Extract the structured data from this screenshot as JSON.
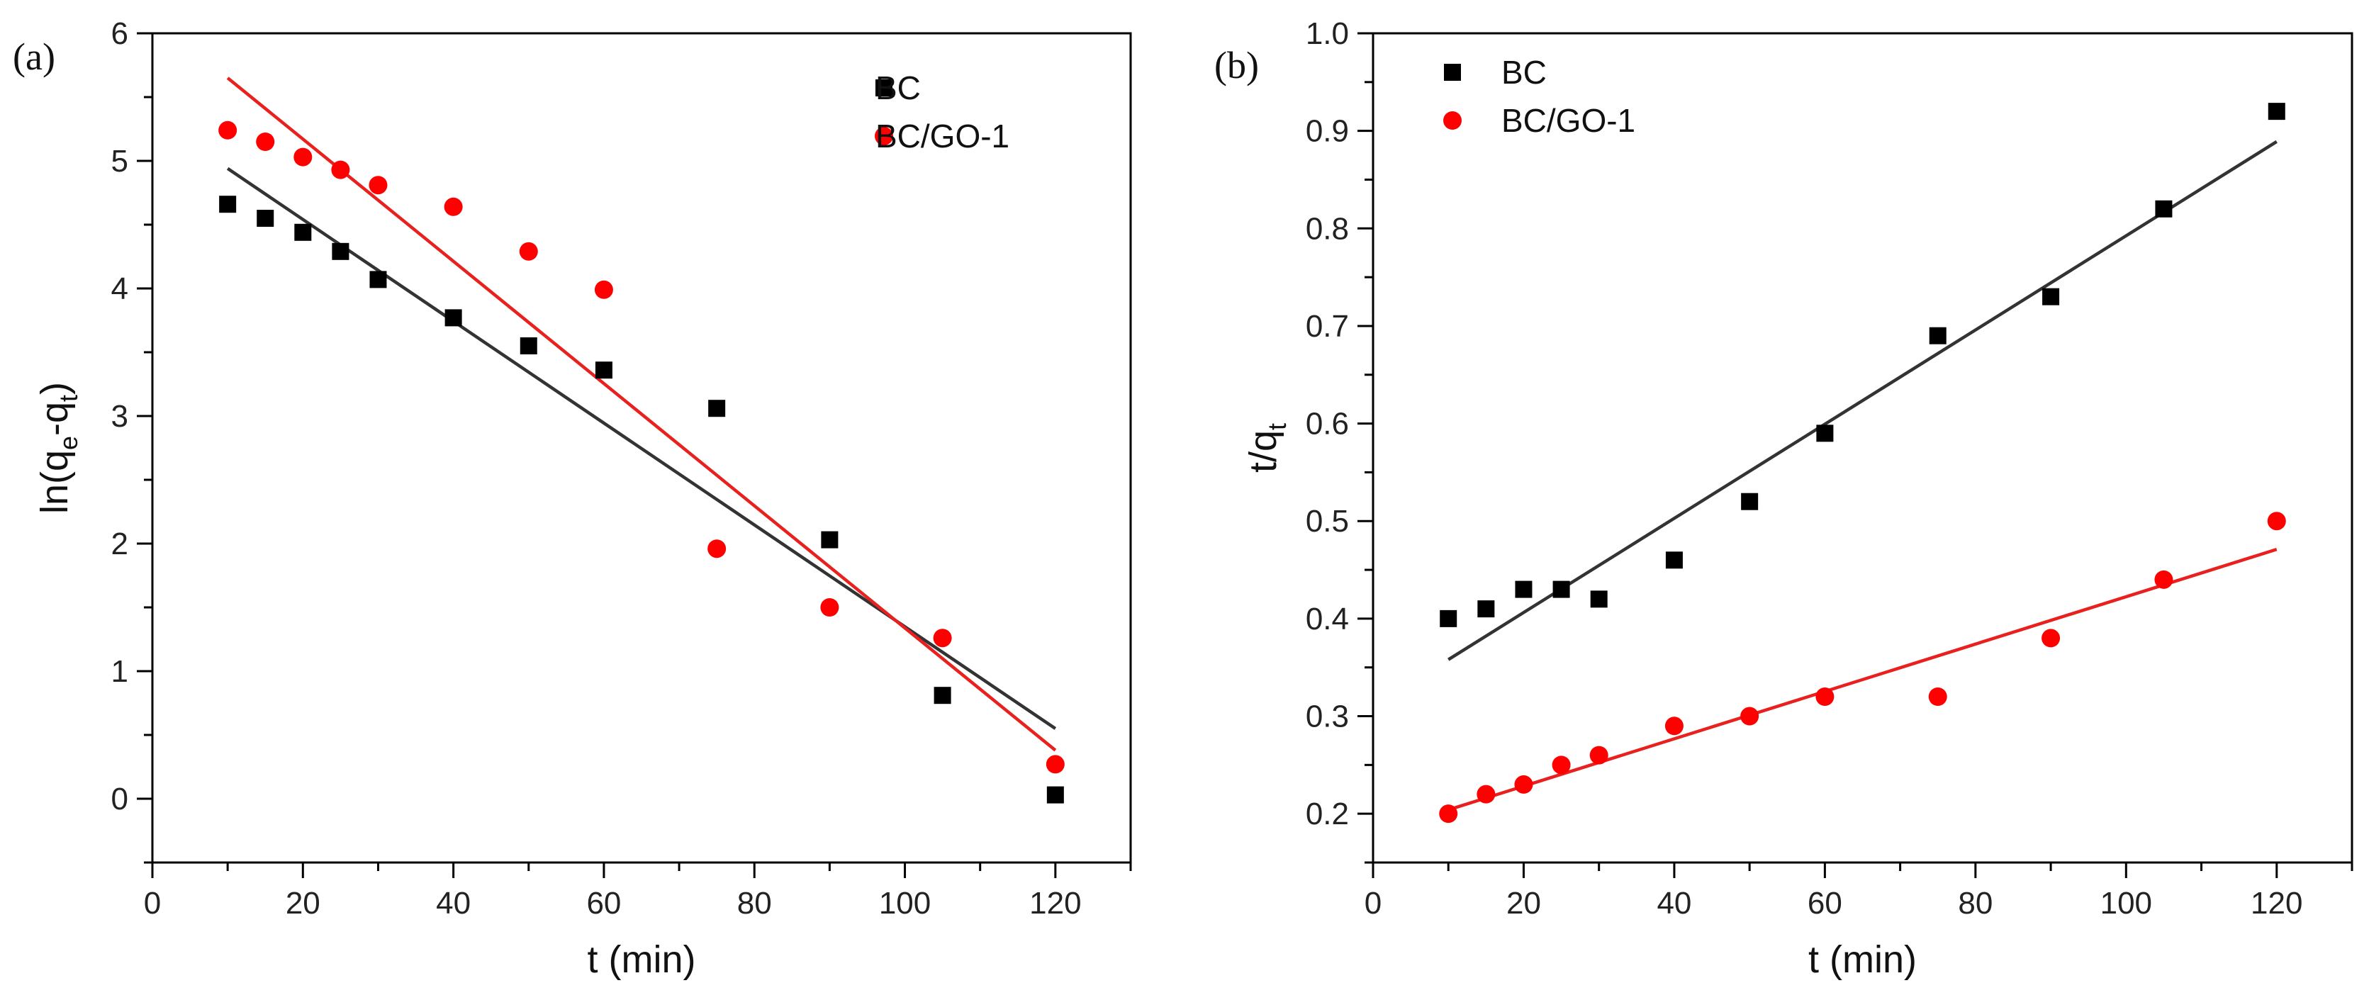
{
  "chart_data": [
    {
      "type": "scatter",
      "panel_label": "(a)",
      "xlabel": "t (min)",
      "ylabel": {
        "base": "ln(q",
        "sub1": "e",
        "mid": "-q",
        "sub2": "t",
        "end": ")"
      },
      "xlim": [
        0,
        130
      ],
      "ylim": [
        -0.5,
        6
      ],
      "xticks": [
        0,
        20,
        40,
        60,
        80,
        100,
        120
      ],
      "yticks": [
        0,
        1,
        2,
        3,
        4,
        5,
        6
      ],
      "legend_position": "top-right",
      "series": [
        {
          "name": "BC",
          "marker": "square",
          "color": "#000000",
          "line_color": "#333333",
          "x": [
            10,
            15,
            20,
            25,
            30,
            40,
            50,
            60,
            75,
            90,
            105,
            120
          ],
          "y": [
            4.66,
            4.55,
            4.44,
            4.29,
            4.07,
            3.77,
            3.55,
            3.36,
            3.06,
            2.03,
            0.81,
            0.03
          ],
          "fit": {
            "x": [
              10,
              120
            ],
            "y": [
              4.94,
              0.55
            ]
          }
        },
        {
          "name": "BC/GO-1",
          "marker": "circle",
          "color": "#ff0000",
          "line_color": "#e8201e",
          "x": [
            10,
            15,
            20,
            25,
            30,
            40,
            50,
            60,
            75,
            90,
            105,
            120
          ],
          "y": [
            5.24,
            5.15,
            5.03,
            4.93,
            4.81,
            4.64,
            4.29,
            3.99,
            1.96,
            1.5,
            1.26,
            0.27
          ],
          "fit": {
            "x": [
              10,
              120
            ],
            "y": [
              5.65,
              0.38
            ]
          }
        }
      ]
    },
    {
      "type": "scatter",
      "panel_label": "(b)",
      "xlabel": "t (min)",
      "ylabel": {
        "base": "t/q",
        "sub1": "t"
      },
      "xlim": [
        0,
        130
      ],
      "ylim": [
        0.15,
        1.0
      ],
      "xticks": [
        0,
        20,
        40,
        60,
        80,
        100,
        120
      ],
      "yticks": [
        "0.2",
        "0.3",
        "0.4",
        "0.5",
        "0.6",
        "0.7",
        "0.8",
        "0.9",
        "1.0"
      ],
      "legend_position": "top-left",
      "series": [
        {
          "name": "BC",
          "marker": "square",
          "color": "#000000",
          "line_color": "#333333",
          "x": [
            10,
            15,
            20,
            25,
            30,
            40,
            50,
            60,
            75,
            90,
            105,
            120
          ],
          "y": [
            0.4,
            0.41,
            0.43,
            0.43,
            0.42,
            0.46,
            0.52,
            0.59,
            0.69,
            0.73,
            0.82,
            0.92
          ],
          "fit": {
            "x": [
              10,
              120
            ],
            "y": [
              0.358,
              0.889
            ]
          }
        },
        {
          "name": "BC/GO-1",
          "marker": "circle",
          "color": "#ff0000",
          "line_color": "#e8201e",
          "x": [
            10,
            15,
            20,
            25,
            30,
            40,
            50,
            60,
            75,
            90,
            105,
            120
          ],
          "y": [
            0.2,
            0.22,
            0.23,
            0.25,
            0.26,
            0.29,
            0.3,
            0.32,
            0.32,
            0.38,
            0.44,
            0.5
          ],
          "fit": {
            "x": [
              10,
              120
            ],
            "y": [
              0.204,
              0.471
            ]
          }
        }
      ]
    }
  ]
}
